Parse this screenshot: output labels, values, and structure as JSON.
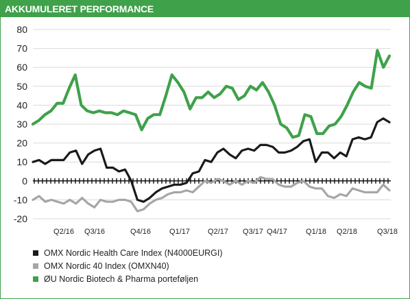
{
  "header": {
    "title": "AKKUMULERET PERFORMANCE"
  },
  "chart_data": {
    "type": "line",
    "title": "AKKUMULERET PERFORMANCE",
    "xlabel": "",
    "ylabel": "",
    "ylim": [
      -20,
      80
    ],
    "yticks": [
      "80",
      "70",
      "60",
      "50",
      "40",
      "30",
      "20",
      "10",
      "0",
      "-10",
      "-20"
    ],
    "xtick_labels": [
      "Q2/16",
      "Q3/16",
      "Q4/16",
      "Q1/17",
      "Q2/17",
      "Q3/17",
      "Q4/17",
      "Q1/18",
      "Q2/18",
      "Q3/18"
    ],
    "grid": true,
    "legend_position": "bottom",
    "series": [
      {
        "name": "OMX Nordic Health Care Index (N4000EURGI)",
        "color": "#1a1a1a",
        "values": [
          10,
          11,
          9,
          11,
          11,
          11,
          15,
          16,
          9,
          14,
          16,
          17,
          7,
          7,
          5,
          6,
          0,
          -10,
          -11,
          -9,
          -6,
          -4,
          -3,
          -2,
          -2,
          -1,
          4,
          5,
          11,
          10,
          15,
          17,
          14,
          12,
          16,
          17,
          16,
          19,
          19,
          18,
          15,
          15,
          16,
          18,
          21,
          22,
          10,
          15,
          15,
          12,
          15,
          13,
          22,
          23,
          22,
          23,
          31,
          33,
          31
        ]
      },
      {
        "name": "OMX Nordic 40 Index (OMXN40)",
        "color": "#a6a6a6",
        "values": [
          -10,
          -8,
          -11,
          -10,
          -11,
          -12,
          -10,
          -12,
          -9,
          -12,
          -14,
          -10,
          -11,
          -11,
          -10,
          -10,
          -11,
          -16,
          -15,
          -12,
          -10,
          -9,
          -7,
          -6,
          -6,
          -5,
          -6,
          -3,
          0,
          -1,
          1,
          0,
          -2,
          0,
          -2,
          0,
          -1,
          2,
          1,
          1,
          -2,
          -3,
          -3,
          -1,
          0,
          -3,
          -4,
          -4,
          -8,
          -9,
          -7,
          -8,
          -4,
          -5,
          -6,
          -6,
          -6,
          -2,
          -5
        ]
      },
      {
        "name": "ØU Nordic Biotech & Pharma porteføljen",
        "color": "#3fa14a",
        "values": [
          30,
          32,
          35,
          37,
          41,
          41,
          49,
          56,
          40,
          37,
          36,
          37,
          36,
          36,
          35,
          37,
          36,
          35,
          27,
          33,
          35,
          35,
          45,
          56,
          52,
          47,
          38,
          44,
          44,
          47,
          44,
          46,
          50,
          49,
          43,
          45,
          50,
          48,
          52,
          47,
          40,
          30,
          28,
          23,
          24,
          35,
          34,
          25,
          25,
          29,
          30,
          34,
          40,
          47,
          52,
          50,
          49,
          69,
          60,
          66
        ]
      }
    ]
  }
}
